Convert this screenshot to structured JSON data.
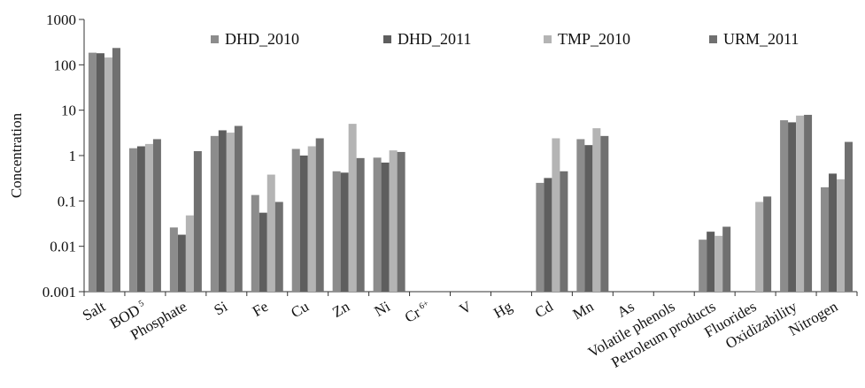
{
  "chart_data": {
    "type": "bar",
    "title": "",
    "xlabel": "",
    "ylabel": "Concentration",
    "yscale": "log",
    "ylim": [
      0.001,
      1000
    ],
    "yticks": [
      "0.001",
      "0.01",
      "0.1",
      "1",
      "10",
      "100",
      "1000"
    ],
    "grid": false,
    "legend_position": "top",
    "categories": [
      "Salt",
      "BOD",
      "Phosphate",
      "Si",
      "Fe",
      "Cu",
      "Zn",
      "Ni",
      "Cr",
      "V",
      "Hg",
      "Cd",
      "Mn",
      "As",
      "Volatile phenols",
      "Petroleum products",
      "Fluorides",
      "Oxidizability",
      "Nitrogen"
    ],
    "category_superscripts": {
      "BOD": "5",
      "Cr": "6+"
    },
    "series": [
      {
        "name": "DHD_2010",
        "color": "#8c8c8c",
        "values": [
          185,
          1.45,
          0.026,
          2.7,
          0.135,
          1.4,
          0.45,
          0.9,
          null,
          null,
          null,
          0.25,
          2.3,
          null,
          null,
          0.014,
          null,
          6.0,
          0.2
        ]
      },
      {
        "name": "DHD_2011",
        "color": "#5e5e5e",
        "values": [
          180,
          1.6,
          0.018,
          3.6,
          0.055,
          1.0,
          0.42,
          0.7,
          null,
          null,
          null,
          0.32,
          1.7,
          null,
          null,
          0.021,
          null,
          5.4,
          0.4
        ]
      },
      {
        "name": "TMP_2010",
        "color": "#b4b4b4",
        "values": [
          145,
          1.8,
          0.048,
          3.2,
          0.38,
          1.6,
          5.0,
          1.3,
          null,
          null,
          null,
          2.4,
          4.0,
          null,
          null,
          0.017,
          0.095,
          7.6,
          0.3
        ]
      },
      {
        "name": "URM_2011",
        "color": "#707070",
        "values": [
          235,
          2.3,
          1.25,
          4.5,
          0.095,
          2.4,
          0.88,
          1.2,
          null,
          null,
          null,
          0.45,
          2.7,
          null,
          null,
          0.027,
          0.125,
          7.9,
          2.0
        ]
      }
    ]
  }
}
